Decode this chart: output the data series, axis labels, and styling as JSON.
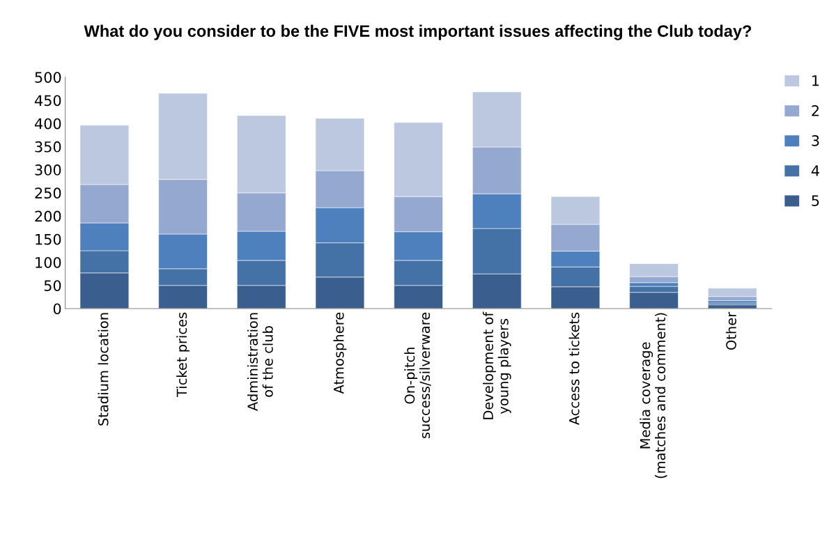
{
  "chart_data": {
    "type": "bar",
    "stacked": true,
    "title": "What do you consider to be the FIVE most important issues affecting the Club today?",
    "categories": [
      "Stadium location",
      "Ticket prices",
      "Administration of the club",
      "Atmosphere",
      "On-pitch success/silverware",
      "Development of young players",
      "Access to tickets",
      "Media coverage (matches and comment)",
      "Other"
    ],
    "series": [
      {
        "name": "5",
        "color": "#3a5f8e",
        "values": [
          77,
          50,
          50,
          68,
          50,
          75,
          47,
          35,
          8
        ]
      },
      {
        "name": "4",
        "color": "#4471a6",
        "values": [
          48,
          36,
          54,
          74,
          54,
          98,
          43,
          13,
          4
        ]
      },
      {
        "name": "3",
        "color": "#4d80bd",
        "values": [
          60,
          75,
          63,
          76,
          62,
          75,
          34,
          8,
          5
        ]
      },
      {
        "name": "2",
        "color": "#95a9d0",
        "values": [
          83,
          118,
          83,
          80,
          76,
          101,
          58,
          13,
          9
        ]
      },
      {
        "name": "1",
        "color": "#bcc8e0",
        "values": [
          128,
          186,
          167,
          113,
          160,
          119,
          60,
          28,
          18
        ]
      }
    ],
    "ylim": [
      0,
      500
    ],
    "yticks": [
      0,
      50,
      100,
      150,
      200,
      250,
      300,
      350,
      400,
      450,
      500
    ],
    "grid": false,
    "legend": "right"
  }
}
